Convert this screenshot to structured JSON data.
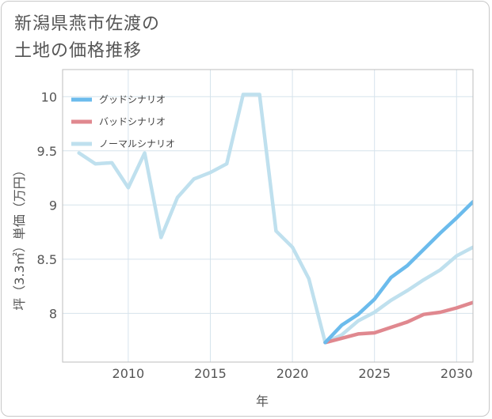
{
  "title_line1": "新潟県燕市佐渡の",
  "title_line2": "土地の価格推移",
  "chart_data": {
    "type": "line",
    "xlabel": "年",
    "ylabel": "坪（3.3㎡）単価（万円）",
    "xlim": [
      2006,
      2031
    ],
    "ylim": [
      7.55,
      10.25
    ],
    "x_ticks": [
      2010,
      2015,
      2020,
      2025,
      2030
    ],
    "y_ticks": [
      8,
      8.5,
      9,
      9.5,
      10
    ],
    "y_tick_labels": [
      "8",
      "8.5",
      "9",
      "9.5",
      "10"
    ],
    "grid": true,
    "legend_position": "top-left",
    "series": [
      {
        "name": "グッドシナリオ",
        "color": "#6bbbec",
        "x": [
          2022,
          2023,
          2024,
          2025,
          2026,
          2027,
          2028,
          2029,
          2030,
          2031
        ],
        "values": [
          7.73,
          7.89,
          7.99,
          8.13,
          8.33,
          8.44,
          8.59,
          8.74,
          8.88,
          9.03
        ]
      },
      {
        "name": "バッドシナリオ",
        "color": "#e0888f",
        "x": [
          2022,
          2023,
          2024,
          2025,
          2026,
          2027,
          2028,
          2029,
          2030,
          2031
        ],
        "values": [
          7.73,
          7.77,
          7.81,
          7.82,
          7.87,
          7.92,
          7.99,
          8.01,
          8.05,
          8.1
        ]
      },
      {
        "name": "ノーマルシナリオ",
        "color": "#bfe0ee",
        "x": [
          2007,
          2008,
          2009,
          2010,
          2011,
          2012,
          2013,
          2014,
          2015,
          2016,
          2017,
          2018,
          2019,
          2020,
          2021,
          2022,
          2023,
          2024,
          2025,
          2026,
          2027,
          2028,
          2029,
          2030,
          2031
        ],
        "values": [
          9.48,
          9.38,
          9.39,
          9.16,
          9.48,
          8.7,
          9.07,
          9.24,
          9.3,
          9.38,
          10.02,
          10.02,
          8.76,
          8.61,
          8.32,
          7.73,
          7.8,
          7.93,
          8.01,
          8.12,
          8.21,
          8.31,
          8.4,
          8.53,
          8.61
        ]
      }
    ]
  }
}
